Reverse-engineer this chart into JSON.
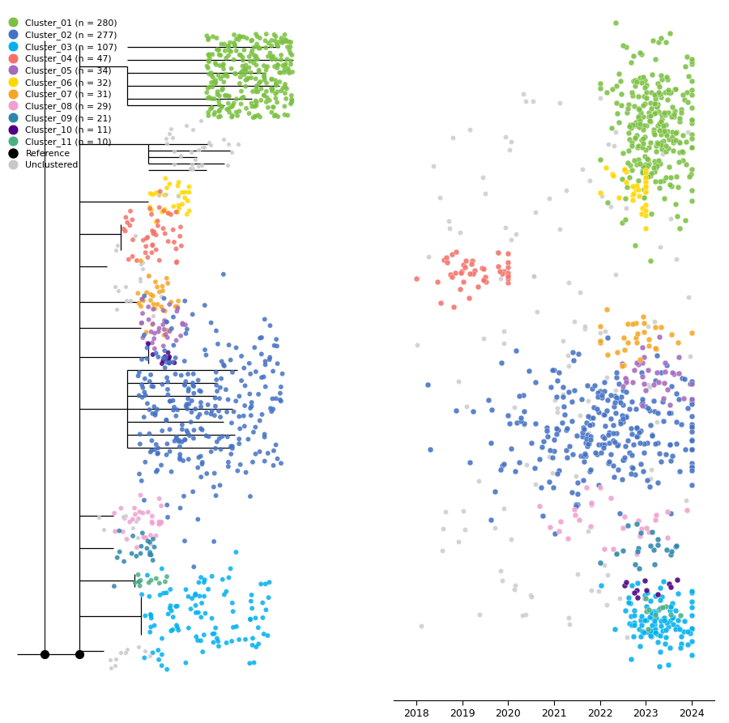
{
  "clusters": [
    {
      "name": "Cluster_01",
      "n": 280,
      "color": "#7BC142"
    },
    {
      "name": "Cluster_02",
      "n": 277,
      "color": "#4472C4"
    },
    {
      "name": "Cluster_03",
      "n": 107,
      "color": "#00B0F0"
    },
    {
      "name": "Cluster_04",
      "n": 47,
      "color": "#F4726A"
    },
    {
      "name": "Cluster_05",
      "n": 34,
      "color": "#A569BD"
    },
    {
      "name": "Cluster_06",
      "n": 32,
      "color": "#FFD700"
    },
    {
      "name": "Cluster_07",
      "n": 31,
      "color": "#F5A623"
    },
    {
      "name": "Cluster_08",
      "n": 29,
      "color": "#F0A0D0"
    },
    {
      "name": "Cluster_09",
      "n": 21,
      "color": "#2E86AB"
    },
    {
      "name": "Cluster_10",
      "n": 11,
      "color": "#4B0082"
    },
    {
      "name": "Cluster_11",
      "n": 10,
      "color": "#4CAF82"
    },
    {
      "name": "Reference",
      "n": null,
      "color": "#000000"
    },
    {
      "name": "Unclustered",
      "n": null,
      "color": "#C8C8C8"
    }
  ],
  "year_ticks": [
    2018,
    2019,
    2020,
    2021,
    2022,
    2023,
    2024
  ],
  "background_color": "#FFFFFF",
  "figsize": [
    9.0,
    8.93
  ]
}
